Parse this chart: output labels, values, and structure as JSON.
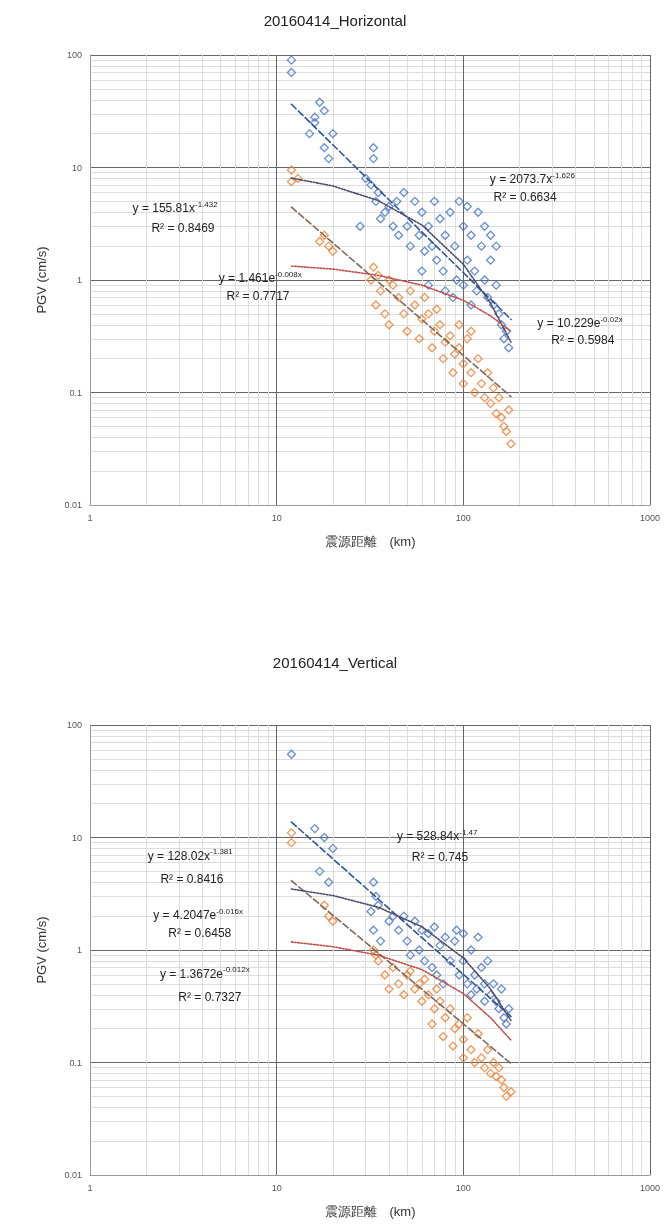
{
  "chart_data": [
    {
      "type": "scatter",
      "title": "20160414_Horizontal",
      "xlabel": "震源距離　(km)",
      "ylabel": "PGV (cm/s)",
      "log": "xy",
      "grid": true,
      "marker": "diamond",
      "xlim": [
        1,
        1000
      ],
      "xticks": [
        1,
        10,
        100,
        1000
      ],
      "ylim": [
        0.01,
        100
      ],
      "yticks": [
        0.01,
        0.1,
        1,
        10,
        100
      ],
      "series": [
        {
          "color": "#4472c4",
          "x": [
            12,
            12,
            16,
            15,
            17,
            18,
            19,
            16,
            18,
            20,
            33,
            33,
            30,
            32,
            35,
            34,
            38,
            28,
            36,
            40,
            44,
            48,
            42,
            45,
            50,
            55,
            52,
            60,
            58,
            62,
            65,
            70,
            68,
            75,
            72,
            80,
            85,
            78,
            90,
            95,
            92,
            100,
            105,
            100,
            110,
            115,
            120,
            118,
            125,
            130,
            135,
            140,
            145,
            150,
            155,
            160,
            165,
            170,
            175,
            110,
            88,
            65,
            60,
            80,
            130,
            105,
            150,
            140
          ],
          "values": [
            90,
            70,
            28,
            20,
            38,
            15,
            12,
            25,
            32,
            20,
            15,
            12,
            8,
            7,
            6,
            5,
            4,
            3,
            3.5,
            4.5,
            5,
            6,
            3,
            2.5,
            3,
            5,
            2,
            4,
            2.5,
            1.8,
            3,
            5,
            2,
            3.5,
            1.5,
            2.5,
            4,
            1.2,
            2,
            5,
            1,
            3,
            1.5,
            0.9,
            2.5,
            1.2,
            4,
            0.8,
            2,
            1,
            0.7,
            1.5,
            0.6,
            0.9,
            0.5,
            0.4,
            0.3,
            0.35,
            0.25,
            0.6,
            0.7,
            0.9,
            1.2,
            0.8,
            3,
            4.5,
            2,
            2.5
          ]
        },
        {
          "color": "#ed7d31",
          "x": [
            12,
            12,
            13,
            18,
            19,
            17,
            20,
            33,
            35,
            32,
            36,
            34,
            38,
            40,
            45,
            48,
            50,
            55,
            60,
            58,
            65,
            70,
            68,
            75,
            80,
            78,
            85,
            90,
            88,
            95,
            100,
            100,
            105,
            110,
            115,
            120,
            125,
            130,
            135,
            140,
            145,
            150,
            155,
            160,
            165,
            170,
            180,
            175,
            42,
            52,
            62,
            72,
            40,
            110,
            95
          ],
          "values": [
            9.5,
            7.5,
            8,
            2.5,
            2,
            2.2,
            1.8,
            1.3,
            1.1,
            1,
            0.8,
            0.6,
            0.5,
            0.4,
            0.7,
            0.5,
            0.35,
            0.6,
            0.45,
            0.3,
            0.5,
            0.35,
            0.25,
            0.4,
            0.28,
            0.2,
            0.32,
            0.22,
            0.15,
            0.25,
            0.18,
            0.12,
            0.3,
            0.15,
            0.1,
            0.2,
            0.12,
            0.09,
            0.15,
            0.08,
            0.11,
            0.065,
            0.09,
            0.06,
            0.05,
            0.045,
            0.035,
            0.07,
            0.9,
            0.8,
            0.7,
            0.55,
            1,
            0.35,
            0.4
          ]
        },
        {
          "type": "line",
          "marker": "none",
          "line_style": "dashed",
          "color": "#2f5597",
          "x": [
            12,
            180
          ],
          "values": [
            36.5,
            0.447
          ]
        },
        {
          "type": "line",
          "marker": "none",
          "line_style": "dashed",
          "color": "#7f6a5a",
          "x": [
            12,
            180
          ],
          "values": [
            4.44,
            0.092
          ]
        },
        {
          "type": "line",
          "marker": "none",
          "line_style": "dotted",
          "color": "#4a4a6a",
          "x": [
            12,
            20,
            35,
            60,
            100,
            140,
            180
          ],
          "values": [
            8.05,
            6.86,
            5.08,
            3.08,
            1.38,
            0.62,
            0.28
          ]
        },
        {
          "type": "line",
          "marker": "none",
          "line_style": "dotted",
          "color": "#c0504d",
          "x": [
            12,
            20,
            35,
            60,
            100,
            140,
            180
          ],
          "values": [
            1.33,
            1.25,
            1.1,
            0.9,
            0.66,
            0.48,
            0.35
          ]
        }
      ],
      "annotations": [
        "y = 2073.7x$^{-1.626}$",
        "R² = 0.6634",
        "y = 155.81x$^{-1.432}$",
        "R² = 0.8469",
        "y = 1.461e$^{-0.008x}$",
        "R² = 0.7717",
        "y = 10.229e$^{-0.02x}$",
        "R² = 0.5984"
      ]
    },
    {
      "type": "scatter",
      "title": "20160414_Vertical",
      "xlabel": "震源距離　(km)",
      "ylabel": "PGV (cm/s)",
      "log": "xy",
      "grid": true,
      "marker": "diamond",
      "xlim": [
        1,
        1000
      ],
      "xticks": [
        1,
        10,
        100,
        1000
      ],
      "ylim": [
        0.01,
        100
      ],
      "yticks": [
        0.01,
        0.1,
        1,
        10,
        100
      ],
      "series": [
        {
          "color": "#4472c4",
          "x": [
            12,
            16,
            18,
            17,
            19,
            20,
            33,
            34,
            32,
            35,
            33,
            36,
            40,
            42,
            45,
            48,
            50,
            55,
            52,
            60,
            58,
            62,
            65,
            70,
            68,
            75,
            72,
            80,
            85,
            78,
            90,
            95,
            92,
            100,
            100,
            105,
            110,
            115,
            120,
            118,
            125,
            130,
            135,
            140,
            145,
            150,
            155,
            160,
            165,
            170,
            175,
            110,
            130
          ],
          "values": [
            55,
            12,
            10,
            5,
            4,
            8,
            4,
            3,
            2.2,
            2.5,
            1.5,
            1.2,
            1.8,
            2,
            1.5,
            2,
            1.2,
            1.8,
            0.9,
            1.5,
            1,
            0.8,
            1.4,
            1.6,
            0.7,
            1.1,
            0.6,
            1.3,
            0.8,
            0.5,
            1.2,
            0.6,
            1.5,
            1.4,
            0.8,
            0.5,
            1,
            0.6,
            1.3,
            0.45,
            0.7,
            0.5,
            0.8,
            0.4,
            0.5,
            0.35,
            0.3,
            0.45,
            0.25,
            0.22,
            0.3,
            0.4,
            0.35
          ]
        },
        {
          "color": "#ed7d31",
          "x": [
            12,
            12,
            18,
            19,
            20,
            33,
            35,
            34,
            40,
            45,
            48,
            50,
            55,
            60,
            58,
            65,
            70,
            68,
            75,
            80,
            78,
            85,
            90,
            88,
            95,
            100,
            100,
            105,
            110,
            115,
            120,
            125,
            130,
            135,
            140,
            145,
            150,
            155,
            160,
            165,
            170,
            180,
            42,
            52,
            62,
            72,
            38
          ],
          "values": [
            11,
            9,
            2.5,
            2,
            1.8,
            1,
            0.8,
            0.9,
            0.45,
            0.5,
            0.4,
            0.6,
            0.45,
            0.35,
            0.5,
            0.4,
            0.3,
            0.22,
            0.35,
            0.25,
            0.17,
            0.3,
            0.2,
            0.14,
            0.22,
            0.16,
            0.11,
            0.25,
            0.13,
            0.1,
            0.18,
            0.11,
            0.09,
            0.13,
            0.08,
            0.1,
            0.075,
            0.09,
            0.07,
            0.06,
            0.05,
            0.055,
            0.7,
            0.65,
            0.55,
            0.45,
            0.6
          ]
        },
        {
          "type": "line",
          "marker": "none",
          "line_style": "dashed",
          "color": "#2f5597",
          "x": [
            12,
            180
          ],
          "values": [
            13.7,
            0.256
          ]
        },
        {
          "type": "line",
          "marker": "none",
          "line_style": "dashed",
          "color": "#7f6a5a",
          "x": [
            12,
            180
          ],
          "values": [
            4.13,
            0.098
          ]
        },
        {
          "type": "line",
          "marker": "none",
          "line_style": "dotted",
          "color": "#4a4a6a",
          "x": [
            12,
            20,
            35,
            60,
            100,
            140,
            180
          ],
          "values": [
            3.48,
            3.05,
            2.4,
            1.61,
            0.85,
            0.45,
            0.236
          ]
        },
        {
          "type": "line",
          "marker": "none",
          "line_style": "dotted",
          "color": "#c0504d",
          "x": [
            12,
            20,
            35,
            60,
            100,
            140,
            180
          ],
          "values": [
            1.18,
            1.07,
            0.9,
            0.67,
            0.41,
            0.25,
            0.158
          ]
        }
      ],
      "annotations": [
        "y = 528.84x$^{-1.47}$",
        "R² = 0.745",
        "y = 128.02x$^{-1.381}$",
        "R² = 0.8416",
        "y = 4.2047e$^{-0.016x}$",
        "R² = 0.6458",
        "y = 1.3672e$^{-0.012x}$",
        "R² = 0.7327"
      ]
    }
  ]
}
